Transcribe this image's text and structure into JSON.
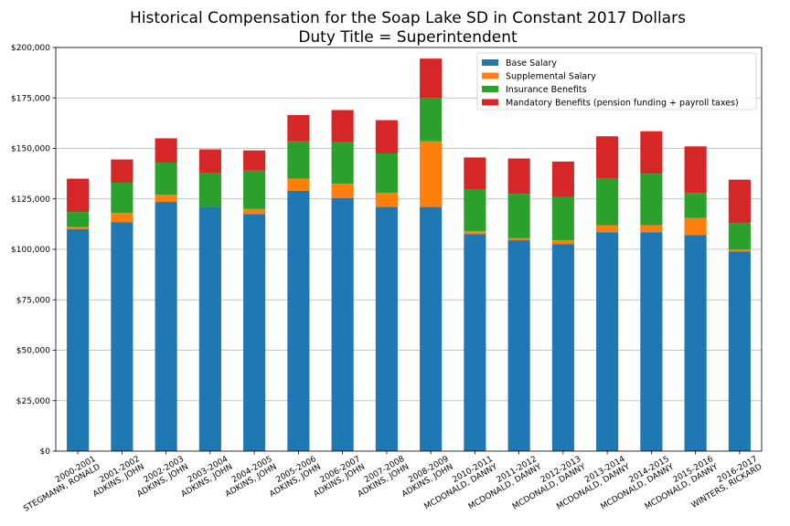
{
  "chart_data": {
    "type": "bar",
    "stacked": true,
    "title": "Historical Compensation for the Soap Lake SD in Constant 2017 Dollars",
    "subtitle": "Duty Title = Superintendent",
    "xlabel": "",
    "ylabel": "",
    "ylim": [
      0,
      200000
    ],
    "yticks": [
      0,
      25000,
      50000,
      75000,
      100000,
      125000,
      150000,
      175000,
      200000
    ],
    "ytick_labels": [
      "$0",
      "$25,000",
      "$50,000",
      "$75,000",
      "$100,000",
      "$125,000",
      "$150,000",
      "$175,000",
      "$200,000"
    ],
    "grid": "horizontal",
    "legend_position": "top-right",
    "categories": [
      {
        "year": "2000-2001",
        "name": "STEGMANN, RONALD"
      },
      {
        "year": "2001-2002",
        "name": "ADKINS, JOHN"
      },
      {
        "year": "2002-2003",
        "name": "ADKINS, JOHN"
      },
      {
        "year": "2003-2004",
        "name": "ADKINS, JOHN"
      },
      {
        "year": "2004-2005",
        "name": "ADKINS, JOHN"
      },
      {
        "year": "2005-2006",
        "name": "ADKINS, JOHN"
      },
      {
        "year": "2006-2007",
        "name": "ADKINS, JOHN"
      },
      {
        "year": "2007-2008",
        "name": "ADKINS, JOHN"
      },
      {
        "year": "2008-2009",
        "name": "ADKINS, JOHN"
      },
      {
        "year": "2010-2011",
        "name": "MCDONALD, DANNY"
      },
      {
        "year": "2011-2012",
        "name": "MCDONALD, DANNY"
      },
      {
        "year": "2012-2013",
        "name": "MCDONALD, DANNY"
      },
      {
        "year": "2013-2014",
        "name": "MCDONALD, DANNY"
      },
      {
        "year": "2014-2015",
        "name": "MCDONALD, DANNY"
      },
      {
        "year": "2015-2016",
        "name": "MCDONALD, DANNY"
      },
      {
        "year": "2016-2017",
        "name": "WINTERS, RICKARD"
      }
    ],
    "series": [
      {
        "name": "Base Salary",
        "color": "#1f77b4",
        "values": [
          110000,
          113500,
          123500,
          121000,
          117500,
          129000,
          125500,
          121000,
          121000,
          107500,
          104500,
          102500,
          108500,
          108500,
          107000,
          99000
        ]
      },
      {
        "name": "Supplemental Salary",
        "color": "#ff7f0e",
        "values": [
          1000,
          4500,
          3500,
          0,
          2500,
          6000,
          7000,
          7000,
          32500,
          1500,
          1000,
          2000,
          3500,
          3500,
          8500,
          1000
        ]
      },
      {
        "name": "Insurance Benefits",
        "color": "#2ca02c",
        "values": [
          7500,
          15000,
          16000,
          17000,
          19000,
          18500,
          20500,
          19500,
          21500,
          20500,
          22000,
          21500,
          23000,
          25500,
          12500,
          13000
        ]
      },
      {
        "name": "Mandatory Benefits (pension funding + payroll taxes)",
        "color": "#d62728",
        "values": [
          16500,
          11500,
          12000,
          11500,
          10000,
          13000,
          16000,
          16500,
          19500,
          16000,
          17500,
          17500,
          21000,
          21000,
          23000,
          21500
        ]
      }
    ]
  }
}
